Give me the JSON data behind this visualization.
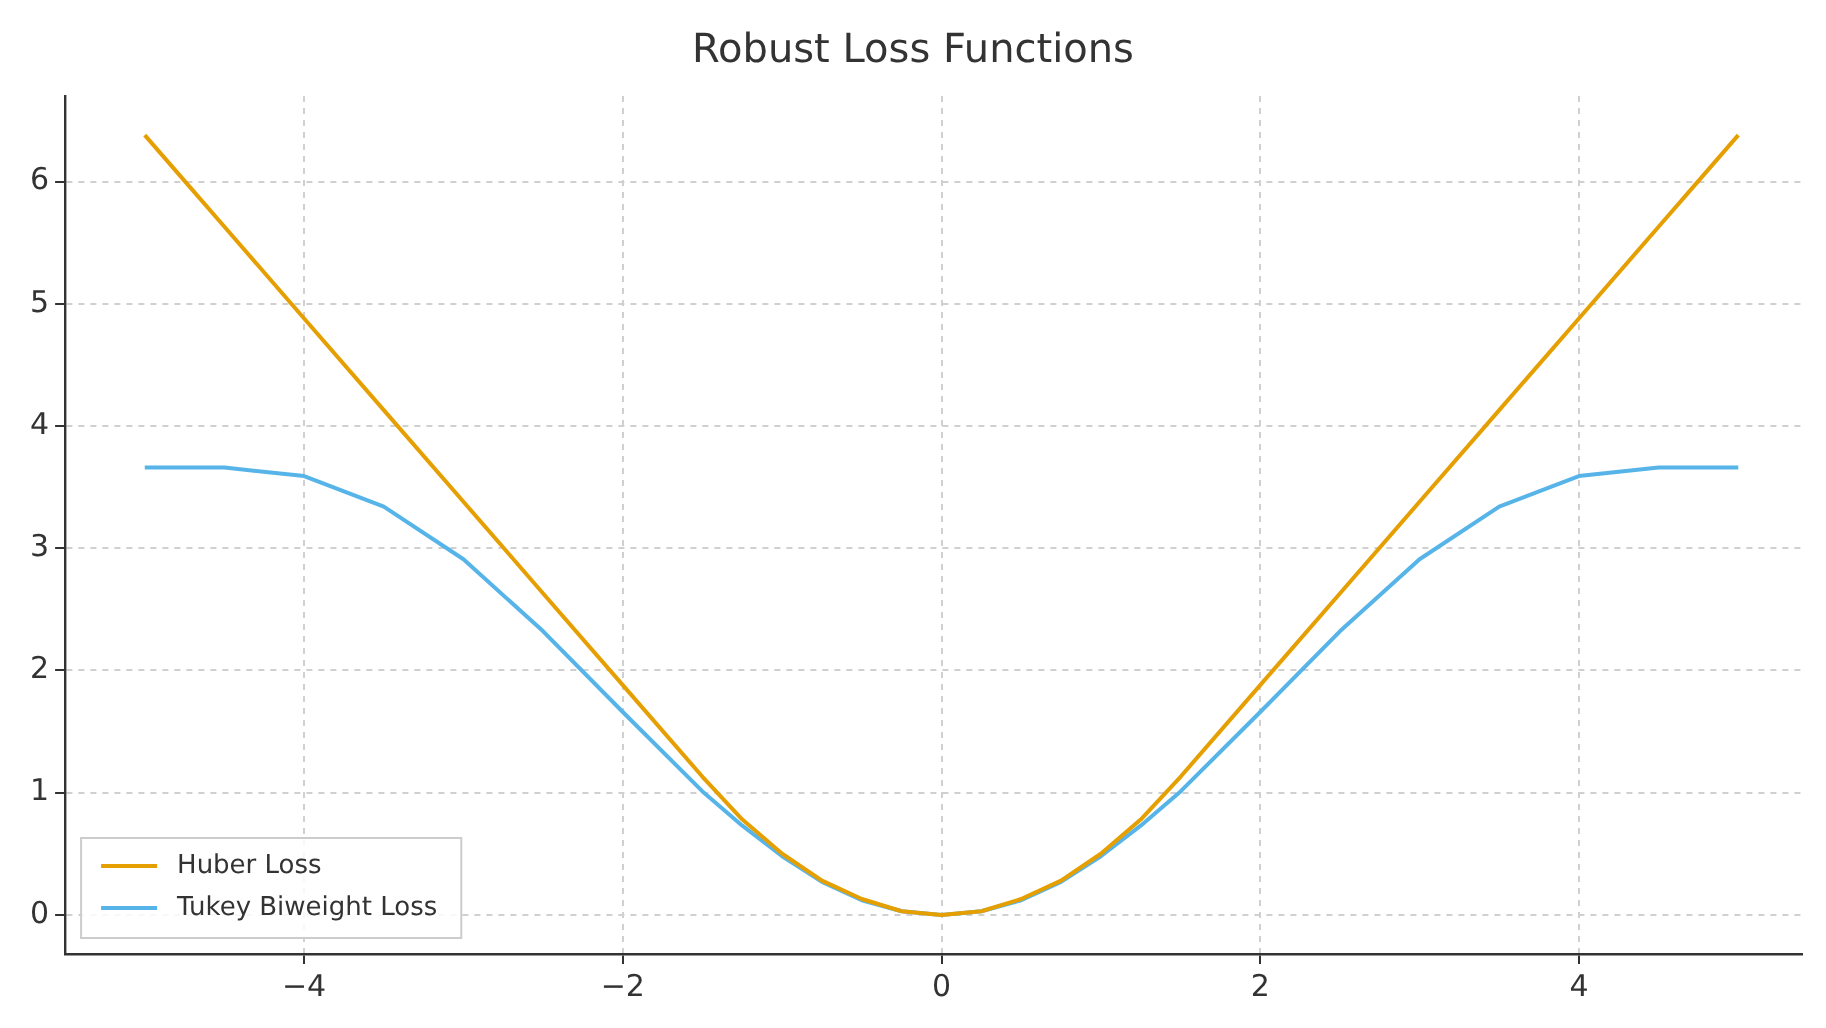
{
  "chart_data": {
    "type": "line",
    "title": "Robust Loss Functions",
    "x": [
      -5,
      -4.7,
      -4.5,
      -4,
      -3.5,
      -3,
      -2.5,
      -2,
      -1.5,
      -1.25,
      -1,
      -0.75,
      -0.5,
      -0.25,
      0,
      0.25,
      0.5,
      0.75,
      1,
      1.25,
      1.5,
      2,
      2.5,
      3,
      3.5,
      4,
      4.5,
      4.7,
      5
    ],
    "series": [
      {
        "name": "Huber Loss",
        "color": "#e69f00",
        "values": [
          6.38,
          5.93,
          5.63,
          4.88,
          4.13,
          3.38,
          2.63,
          1.88,
          1.13,
          0.78,
          0.5,
          0.28,
          0.13,
          0.03,
          0,
          0.03,
          0.13,
          0.28,
          0.5,
          0.78,
          1.13,
          1.88,
          2.63,
          3.38,
          4.13,
          4.88,
          5.63,
          5.93,
          6.38
        ]
      },
      {
        "name": "Tukey Biweight Loss",
        "color": "#56b4e9",
        "values": [
          3.66,
          3.66,
          3.66,
          3.59,
          3.34,
          2.91,
          2.32,
          1.66,
          1.01,
          0.73,
          0.48,
          0.27,
          0.12,
          0.03,
          0,
          0.03,
          0.12,
          0.27,
          0.48,
          0.73,
          1.01,
          1.66,
          2.32,
          2.91,
          3.34,
          3.59,
          3.66,
          3.66,
          3.66
        ]
      }
    ],
    "xlim": [
      -5.5,
      5.4
    ],
    "ylim": [
      -0.32,
      6.7
    ],
    "xticks": [
      {
        "value": -4,
        "label": "−4"
      },
      {
        "value": -2,
        "label": "−2"
      },
      0,
      2,
      4
    ],
    "yticks": [
      0,
      1,
      2,
      3,
      4,
      5,
      6
    ],
    "grid": true,
    "legend": "bottom left",
    "marker": "none",
    "line_style": "solid"
  }
}
